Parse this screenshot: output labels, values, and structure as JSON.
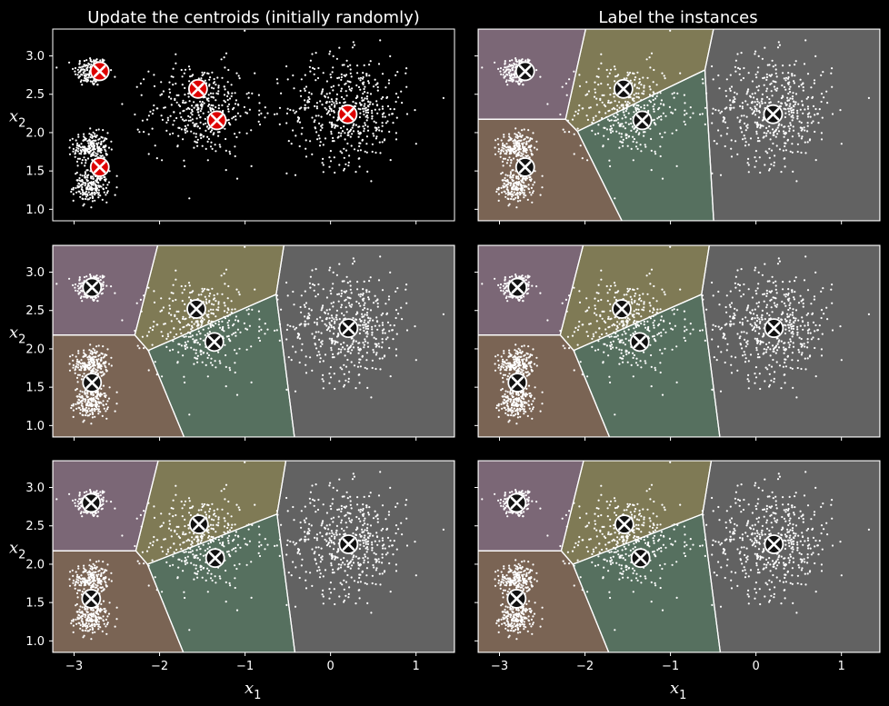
{
  "figure": {
    "column_titles": [
      "Update the centroids (initially randomly)",
      "Label the instances"
    ],
    "xlabel": "x",
    "xlabel_sub": "1",
    "ylabel": "x",
    "ylabel_sub": "2",
    "background_color": "#000000",
    "point_color": "#ffffff",
    "initial_centroid_color": "#dd0000",
    "centroid_color": "#111111",
    "region_colors": [
      "#7b6776",
      "#7f7a55",
      "#7a6454",
      "#56705f",
      "#626262"
    ]
  },
  "chart_data": [
    {
      "panel": "row1-left",
      "type": "scatter",
      "title": "Update the centroids (initially randomly)",
      "xlim": [
        -3.25,
        1.45
      ],
      "ylim": [
        0.85,
        3.35
      ],
      "xticks": [
        -3,
        -2,
        -1,
        0,
        1
      ],
      "yticks": [
        1.0,
        1.5,
        2.0,
        2.5,
        3.0
      ],
      "show_x_tick_labels": false,
      "show_y_tick_labels": true,
      "xlabel": "",
      "ylabel": "x2",
      "regions": false,
      "centroids": [
        [
          -2.7,
          2.8
        ],
        [
          -1.55,
          2.57
        ],
        [
          -1.33,
          2.16
        ],
        [
          0.2,
          2.24
        ],
        [
          -2.7,
          1.55
        ]
      ],
      "centroid_style": "red"
    },
    {
      "panel": "row1-right",
      "type": "scatter",
      "title": "Label the instances",
      "xlim": [
        -3.25,
        1.45
      ],
      "ylim": [
        0.85,
        3.35
      ],
      "xticks": [
        -3,
        -2,
        -1,
        0,
        1
      ],
      "yticks": [
        1.0,
        1.5,
        2.0,
        2.5,
        3.0
      ],
      "show_x_tick_labels": false,
      "show_y_tick_labels": false,
      "xlabel": "",
      "ylabel": "",
      "regions": true,
      "centroids": [
        [
          -2.7,
          2.8
        ],
        [
          -1.55,
          2.57
        ],
        [
          -1.33,
          2.16
        ],
        [
          0.2,
          2.24
        ],
        [
          -2.7,
          1.55
        ]
      ],
      "centroid_style": "black"
    },
    {
      "panel": "row2-left",
      "type": "scatter",
      "title": "",
      "xlim": [
        -3.25,
        1.45
      ],
      "ylim": [
        0.85,
        3.35
      ],
      "xticks": [
        -3,
        -2,
        -1,
        0,
        1
      ],
      "yticks": [
        1.0,
        1.5,
        2.0,
        2.5,
        3.0
      ],
      "show_x_tick_labels": false,
      "show_y_tick_labels": true,
      "xlabel": "",
      "ylabel": "x2",
      "regions": true,
      "centroids": [
        [
          -2.79,
          2.8
        ],
        [
          -1.57,
          2.52
        ],
        [
          -1.36,
          2.09
        ],
        [
          0.21,
          2.27
        ],
        [
          -2.79,
          1.56
        ]
      ],
      "centroid_style": "black"
    },
    {
      "panel": "row2-right",
      "type": "scatter",
      "title": "",
      "xlim": [
        -3.25,
        1.45
      ],
      "ylim": [
        0.85,
        3.35
      ],
      "xticks": [
        -3,
        -2,
        -1,
        0,
        1
      ],
      "yticks": [
        1.0,
        1.5,
        2.0,
        2.5,
        3.0
      ],
      "show_x_tick_labels": false,
      "show_y_tick_labels": false,
      "xlabel": "",
      "ylabel": "",
      "regions": true,
      "centroids": [
        [
          -2.79,
          2.8
        ],
        [
          -1.57,
          2.52
        ],
        [
          -1.36,
          2.09
        ],
        [
          0.21,
          2.27
        ],
        [
          -2.79,
          1.56
        ]
      ],
      "centroid_style": "black"
    },
    {
      "panel": "row3-left",
      "type": "scatter",
      "title": "",
      "xlim": [
        -3.25,
        1.45
      ],
      "ylim": [
        0.85,
        3.35
      ],
      "xticks": [
        -3,
        -2,
        -1,
        0,
        1
      ],
      "yticks": [
        1.0,
        1.5,
        2.0,
        2.5,
        3.0
      ],
      "show_x_tick_labels": true,
      "show_y_tick_labels": true,
      "xlabel": "x1",
      "ylabel": "x2",
      "regions": true,
      "centroids": [
        [
          -2.8,
          2.8
        ],
        [
          -1.54,
          2.52
        ],
        [
          -1.35,
          2.08
        ],
        [
          0.21,
          2.26
        ],
        [
          -2.8,
          1.55
        ]
      ],
      "centroid_style": "black"
    },
    {
      "panel": "row3-right",
      "type": "scatter",
      "title": "",
      "xlim": [
        -3.25,
        1.45
      ],
      "ylim": [
        0.85,
        3.35
      ],
      "xticks": [
        -3,
        -2,
        -1,
        0,
        1
      ],
      "yticks": [
        1.0,
        1.5,
        2.0,
        2.5,
        3.0
      ],
      "show_x_tick_labels": true,
      "show_y_tick_labels": false,
      "xlabel": "x1",
      "ylabel": "",
      "regions": true,
      "centroids": [
        [
          -2.8,
          2.8
        ],
        [
          -1.54,
          2.52
        ],
        [
          -1.35,
          2.08
        ],
        [
          0.21,
          2.26
        ],
        [
          -2.8,
          1.55
        ]
      ],
      "centroid_style": "black"
    }
  ],
  "blobs": {
    "centers": [
      [
        -2.8,
        2.8
      ],
      [
        -2.8,
        1.8
      ],
      [
        -2.8,
        1.3
      ],
      [
        -1.5,
        2.3
      ],
      [
        0.2,
        2.3
      ]
    ],
    "spreads": [
      0.1,
      0.1,
      0.1,
      0.3,
      0.35
    ],
    "counts": [
      170,
      220,
      210,
      380,
      480
    ]
  }
}
